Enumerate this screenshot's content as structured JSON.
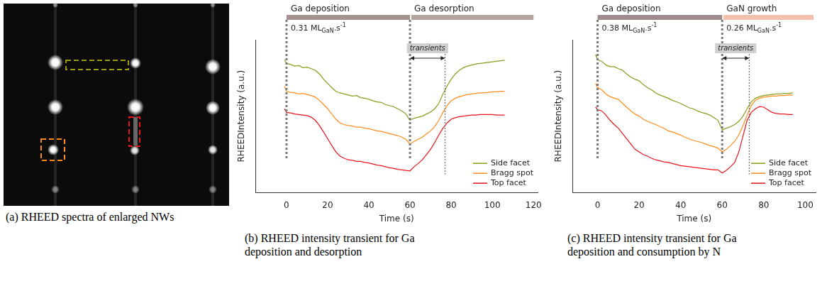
{
  "image_panel": {
    "caption": "(a) RHEED spectra of enlarged NWs"
  },
  "chart_data": [
    {
      "type": "line",
      "caption": "(b) RHEED intensity transient for Ga deposition and desorption",
      "x_label": "Time (s)",
      "y_label": "RHEEDIntensity (a.u.)",
      "xlim": [
        -15,
        122
      ],
      "xticks": [
        0,
        20,
        40,
        60,
        80,
        100,
        120
      ],
      "ylim": [
        0,
        290
      ],
      "tick_labels": "x",
      "grid": false,
      "legend": "lower right",
      "phases": [
        {
          "label": "Ga deposition",
          "start": 0,
          "end": 60,
          "color": "#a3938f",
          "rate": {
            "text": "0.31 ML",
            "sub": "GaN",
            "tail": ".s",
            "sup": "-1"
          }
        },
        {
          "label": "Ga desorption",
          "start": 60,
          "end": 120,
          "color": "#b3a49f"
        }
      ],
      "transients": {
        "label": "transients",
        "start": 60,
        "end": 77
      },
      "x": [
        -1,
        0,
        2,
        4,
        6,
        8,
        10,
        12,
        14,
        16,
        18,
        20,
        22,
        24,
        26,
        28,
        30,
        32,
        34,
        36,
        38,
        40,
        42,
        44,
        46,
        48,
        50,
        52,
        54,
        56,
        58,
        60,
        62,
        64,
        66,
        68,
        70,
        72,
        74,
        76,
        78,
        80,
        82,
        84,
        86,
        88,
        90,
        92,
        94,
        96,
        98,
        100,
        102,
        104,
        106
      ],
      "series": [
        {
          "name": "Side facet",
          "color": "#8c9a1c",
          "values": [
            252,
            245,
            243,
            240,
            241,
            237,
            238,
            235,
            232,
            225,
            215,
            207,
            199,
            192,
            189,
            187,
            185,
            183,
            184,
            180,
            179,
            177,
            174,
            172,
            171,
            167,
            165,
            163,
            159,
            155,
            149,
            137,
            141,
            143,
            145,
            149,
            153,
            159,
            169,
            187,
            202,
            215,
            225,
            232,
            237,
            240,
            242,
            244,
            245,
            246,
            247,
            248,
            249,
            250,
            251
          ]
        },
        {
          "name": "Bragg spot",
          "color": "#ff8c1a",
          "values": [
            202,
            192,
            190,
            189,
            187,
            188,
            186,
            184,
            181,
            175,
            167,
            159,
            149,
            139,
            132,
            129,
            127,
            126,
            124,
            124,
            122,
            121,
            119,
            117,
            116,
            114,
            112,
            110,
            108,
            105,
            101,
            92,
            97,
            101,
            105,
            111,
            117,
            125,
            137,
            152,
            165,
            174,
            179,
            182,
            184,
            186,
            187,
            188,
            189,
            189,
            190,
            191,
            191,
            192,
            192
          ]
        },
        {
          "name": "Top facet",
          "color": "#e8141c",
          "values": [
            159,
            152,
            151,
            149,
            148,
            147,
            146,
            143,
            137,
            127,
            115,
            102,
            89,
            77,
            69,
            65,
            62,
            61,
            59,
            59,
            57,
            56,
            54,
            52,
            51,
            49,
            47,
            46,
            44,
            43,
            42,
            41,
            49,
            55,
            62,
            72,
            82,
            95,
            109,
            122,
            132,
            139,
            142,
            144,
            145,
            146,
            147,
            147,
            148,
            148,
            148,
            148,
            147,
            147,
            147
          ]
        }
      ]
    },
    {
      "type": "line",
      "caption": "(c) RHEED intensity transient for Ga deposition and consumption by N",
      "x_label": "Time (s)",
      "y_label": "RHEEDIntensity (a.u.)",
      "xlim": [
        -12,
        105
      ],
      "xticks": [
        0,
        20,
        40,
        60,
        80,
        100
      ],
      "ylim": [
        0,
        290
      ],
      "tick_labels": "x",
      "grid": false,
      "legend": "lower right",
      "phases": [
        {
          "label": "Ga deposition",
          "start": 0,
          "end": 60,
          "color": "#9d8c8b",
          "rate": {
            "text": "0.38 ML",
            "sub": "GaN",
            "tail": ".s",
            "sup": "-1"
          }
        },
        {
          "label": "GaN growth",
          "start": 60,
          "end": 104,
          "color": "#f2c0ad",
          "rate": {
            "text": "0.26 ML",
            "sub": "GaN",
            "tail": ".s",
            "sup": "-1"
          }
        }
      ],
      "transients": {
        "label": "transients",
        "start": 60,
        "end": 73
      },
      "x": [
        -1,
        0,
        2,
        4,
        6,
        8,
        10,
        12,
        14,
        16,
        18,
        20,
        22,
        24,
        26,
        28,
        30,
        32,
        34,
        36,
        38,
        40,
        42,
        44,
        46,
        48,
        50,
        52,
        54,
        56,
        58,
        60,
        62,
        64,
        66,
        68,
        70,
        72,
        74,
        76,
        78,
        80,
        82,
        84,
        86,
        88,
        90,
        92,
        94
      ],
      "series": [
        {
          "name": "Side facet",
          "color": "#8c9a1c",
          "values": [
            262,
            252,
            249,
            242,
            239,
            239,
            235,
            232,
            225,
            219,
            215,
            212,
            205,
            199,
            195,
            189,
            185,
            182,
            179,
            175,
            172,
            169,
            165,
            161,
            159,
            155,
            152,
            150,
            147,
            142,
            137,
            119,
            122,
            125,
            129,
            135,
            145,
            159,
            172,
            179,
            182,
            184,
            185,
            186,
            187,
            187,
            188,
            188,
            189
          ]
        },
        {
          "name": "Bragg spot",
          "color": "#ff8c1a",
          "values": [
            207,
            199,
            195,
            187,
            182,
            179,
            177,
            169,
            162,
            155,
            149,
            145,
            139,
            135,
            132,
            129,
            125,
            122,
            117,
            115,
            112,
            109,
            105,
            102,
            99,
            97,
            95,
            92,
            89,
            87,
            84,
            77,
            82,
            89,
            97,
            109,
            127,
            147,
            165,
            175,
            179,
            181,
            182,
            183,
            183,
            184,
            184,
            185,
            185
          ]
        },
        {
          "name": "Top facet",
          "color": "#e8141c",
          "values": [
            162,
            157,
            155,
            147,
            137,
            129,
            122,
            112,
            102,
            92,
            82,
            77,
            72,
            69,
            65,
            62,
            60,
            58,
            57,
            55,
            53,
            51,
            50,
            49,
            48,
            47,
            46,
            45,
            44,
            43,
            43,
            37,
            42,
            49,
            57,
            77,
            107,
            137,
            152,
            159,
            163,
            162,
            157,
            152,
            150,
            149,
            149,
            148,
            148
          ]
        }
      ]
    }
  ]
}
